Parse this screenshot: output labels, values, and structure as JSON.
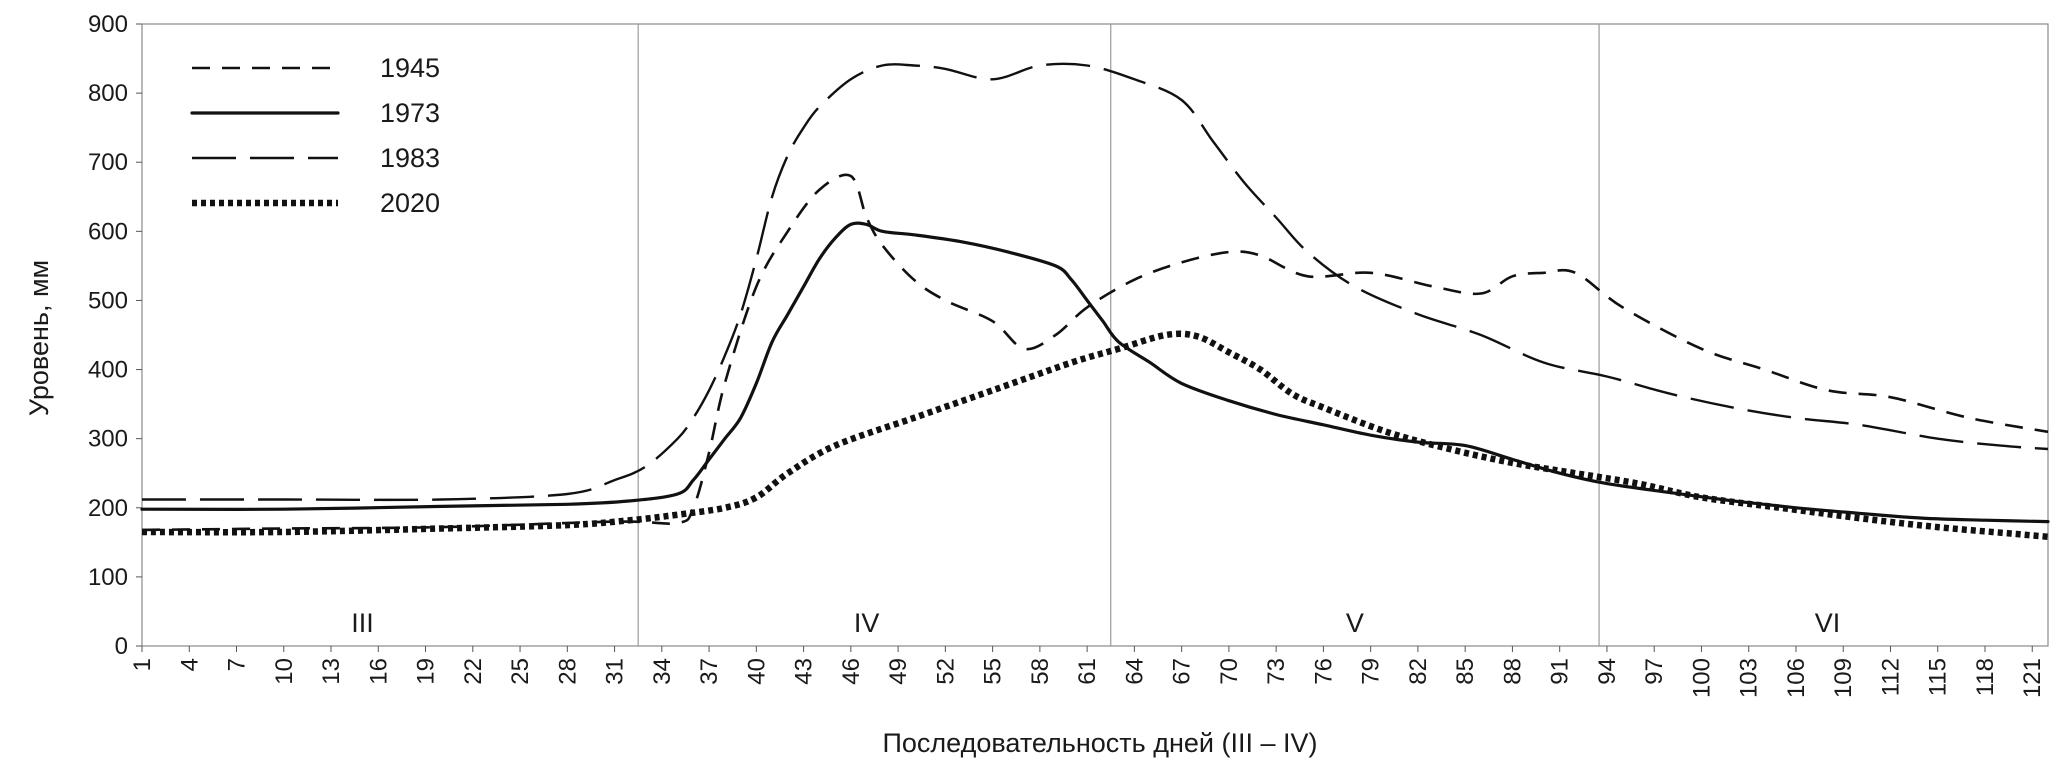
{
  "chart_data": {
    "type": "line",
    "title": "",
    "xlabel": "Последовательность дней (III – IV)",
    "ylabel": "Уровень, мм",
    "xlim": [
      1,
      122
    ],
    "ylim": [
      0,
      900
    ],
    "y_ticks": [
      0,
      100,
      200,
      300,
      400,
      500,
      600,
      700,
      800,
      900
    ],
    "x_ticks": [
      1,
      4,
      7,
      10,
      13,
      16,
      19,
      22,
      25,
      28,
      31,
      34,
      37,
      40,
      43,
      46,
      49,
      52,
      55,
      58,
      61,
      64,
      67,
      70,
      73,
      76,
      79,
      82,
      85,
      88,
      91,
      94,
      97,
      100,
      103,
      106,
      109,
      112,
      115,
      118,
      121
    ],
    "grid": false,
    "legend_position": "top-left",
    "month_boundaries": [
      32.5,
      62.5,
      93.5
    ],
    "months": [
      {
        "label": "III",
        "x": 15
      },
      {
        "label": "IV",
        "x": 47
      },
      {
        "label": "V",
        "x": 78
      },
      {
        "label": "VI",
        "x": 108
      }
    ],
    "series": [
      {
        "name": "1945",
        "style": "short-dash",
        "x": [
          1,
          10,
          20,
          31,
          35,
          36,
          37,
          38,
          40,
          42,
          44,
          46,
          47,
          48,
          50,
          52,
          55,
          57,
          59,
          61,
          64,
          67,
          70,
          72,
          75,
          79,
          83,
          86,
          88,
          90,
          92,
          95,
          100,
          104,
          108,
          112,
          117,
          122
        ],
        "y": [
          168,
          170,
          172,
          180,
          178,
          200,
          280,
          380,
          520,
          600,
          660,
          680,
          620,
          580,
          530,
          500,
          470,
          430,
          450,
          490,
          530,
          555,
          570,
          565,
          535,
          540,
          520,
          510,
          535,
          540,
          540,
          490,
          430,
          400,
          370,
          360,
          330,
          310
        ]
      },
      {
        "name": "1973",
        "style": "solid",
        "x": [
          1,
          10,
          20,
          28,
          32,
          35,
          36,
          37,
          38,
          39,
          40,
          41,
          42,
          43,
          44,
          45,
          46,
          47,
          48,
          50,
          53,
          56,
          59,
          60,
          61,
          62,
          63,
          65,
          67,
          70,
          73,
          76,
          79,
          82,
          85,
          88,
          91,
          94,
          98,
          102,
          106,
          110,
          114,
          118,
          122
        ],
        "y": [
          198,
          198,
          202,
          205,
          210,
          220,
          240,
          270,
          300,
          330,
          380,
          440,
          480,
          520,
          560,
          590,
          610,
          610,
          600,
          595,
          585,
          570,
          550,
          530,
          500,
          470,
          440,
          410,
          380,
          355,
          335,
          320,
          305,
          295,
          290,
          270,
          250,
          235,
          222,
          210,
          200,
          192,
          185,
          182,
          180
        ]
      },
      {
        "name": "1983",
        "style": "long-dash",
        "x": [
          1,
          10,
          20,
          28,
          31,
          33,
          35,
          36,
          37,
          38,
          39,
          40,
          41,
          42,
          43,
          44,
          46,
          48,
          50,
          52,
          55,
          58,
          61,
          64,
          67,
          69,
          71,
          73,
          75,
          78,
          82,
          86,
          90,
          94,
          98,
          102,
          106,
          110,
          115,
          119,
          122
        ],
        "y": [
          212,
          212,
          212,
          220,
          240,
          260,
          300,
          330,
          370,
          420,
          480,
          560,
          650,
          710,
          750,
          780,
          820,
          840,
          840,
          835,
          820,
          840,
          840,
          820,
          790,
          730,
          670,
          620,
          570,
          520,
          480,
          450,
          410,
          390,
          365,
          345,
          330,
          320,
          300,
          290,
          285
        ]
      },
      {
        "name": "2020",
        "style": "dotted",
        "x": [
          1,
          10,
          20,
          28,
          32,
          35,
          38,
          40,
          42,
          45,
          50,
          55,
          60,
          63,
          66,
          68,
          70,
          72,
          74,
          76,
          80,
          84,
          88,
          92,
          96,
          100,
          105,
          110,
          115,
          120,
          122
        ],
        "y": [
          165,
          165,
          170,
          175,
          182,
          190,
          200,
          215,
          250,
          290,
          330,
          370,
          410,
          430,
          450,
          448,
          425,
          400,
          365,
          345,
          310,
          285,
          265,
          250,
          235,
          215,
          200,
          185,
          172,
          162,
          158
        ]
      }
    ]
  }
}
